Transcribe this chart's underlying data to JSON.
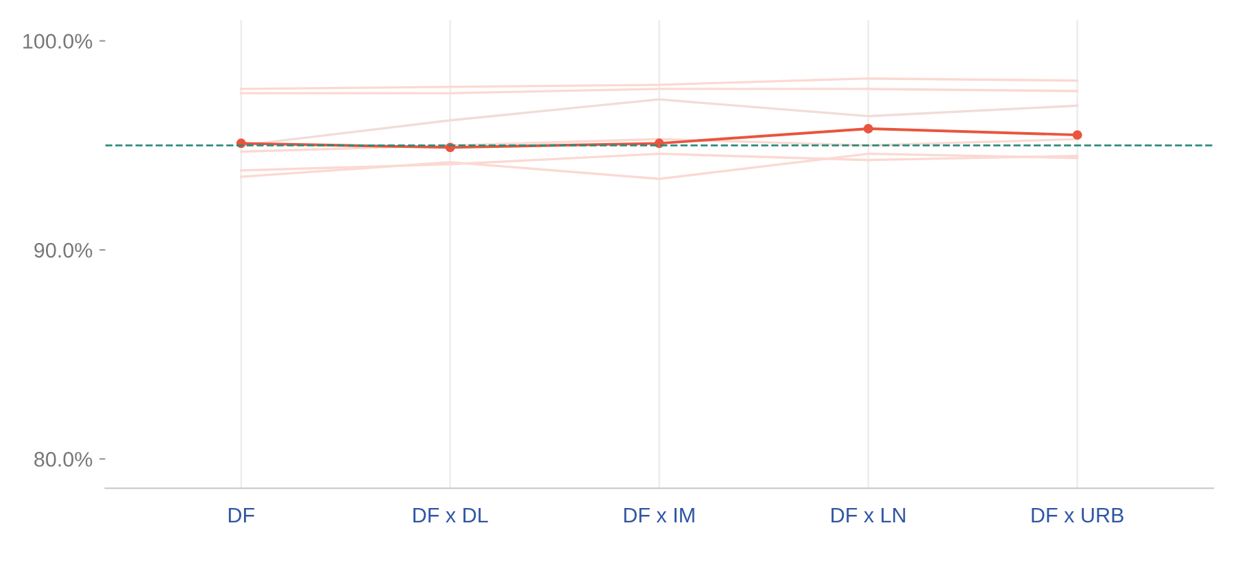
{
  "chart_data": {
    "type": "line",
    "categories": [
      "DF",
      "DF x DL",
      "DF x IM",
      "DF x LN",
      "DF x URB"
    ],
    "series": [
      {
        "color": "#fbd9d2",
        "marker": "none",
        "values": [
          97.7,
          97.8,
          97.9,
          98.2,
          98.1
        ]
      },
      {
        "color": "#fbd9d2",
        "marker": "none",
        "values": [
          97.5,
          97.5,
          97.7,
          97.7,
          97.6
        ]
      },
      {
        "color": "#f1dcd8",
        "marker": "none",
        "values": [
          95.0,
          96.2,
          97.2,
          96.4,
          96.9
        ]
      },
      {
        "color": "#fbd9d2",
        "marker": "none",
        "values": [
          94.7,
          95.0,
          95.3,
          95.0,
          95.3
        ]
      },
      {
        "color": "#fbd9d2",
        "marker": "none",
        "values": [
          93.8,
          94.1,
          94.6,
          94.3,
          94.5
        ]
      },
      {
        "color": "#fbd9d2",
        "marker": "none",
        "values": [
          93.5,
          94.2,
          93.4,
          94.6,
          94.4
        ]
      },
      {
        "color": "#e8553e",
        "marker": "circle",
        "values": [
          95.1,
          94.9,
          95.1,
          95.8,
          95.5
        ]
      }
    ],
    "ylim": [
      78.6,
      101
    ],
    "yticks": [
      {
        "value": 80,
        "label": "80.0%"
      },
      {
        "value": 90,
        "label": "90.0%"
      },
      {
        "value": 100,
        "label": "100.0%"
      }
    ],
    "ref_lines": [
      {
        "axis": "y",
        "value": 95.0,
        "color": "#2e8b7a",
        "line_style": "dashed"
      }
    ],
    "grid": "x",
    "line_style": "solid"
  }
}
